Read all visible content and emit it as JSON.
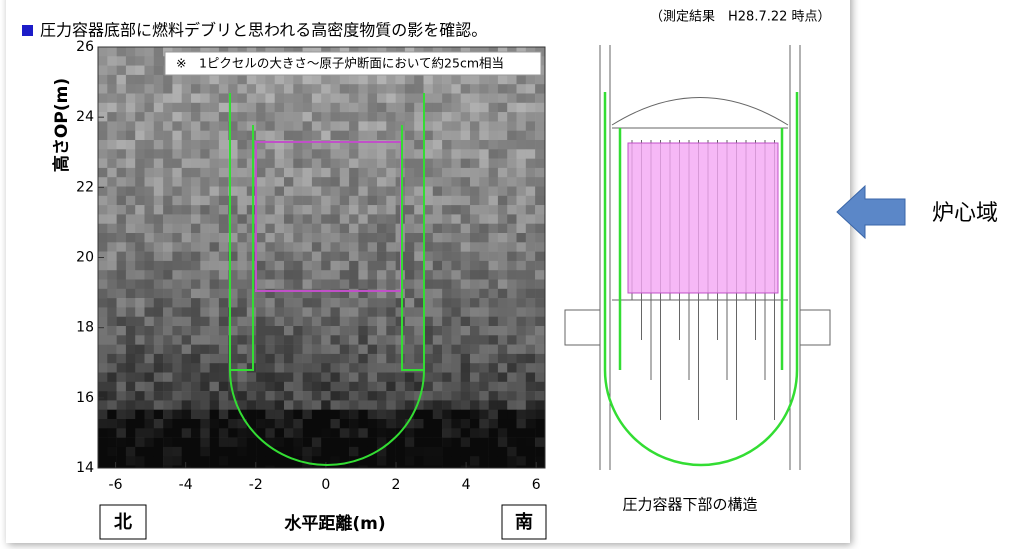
{
  "header": {
    "title": "圧力容器底部に燃料デブリと思われる高密度物質の影を確認。",
    "note": "（測定結果　H28.7.22 時点）"
  },
  "plot": {
    "note": "※　1ピクセルの大きさ～原子炉断面において約25cm相当",
    "x_label": "水平距離(m)",
    "y_label": "高さOP(m)",
    "xlim": [
      -6.5,
      6.25
    ],
    "ylim": [
      14,
      26
    ],
    "xticks": [
      -6,
      -4,
      -2,
      0,
      2,
      4,
      6
    ],
    "yticks": [
      14,
      16,
      18,
      20,
      22,
      24,
      26
    ],
    "north": "北",
    "south": "南"
  },
  "diagram": {
    "caption": "圧力容器下部の構造"
  },
  "callout": {
    "label": "炉心域"
  }
}
